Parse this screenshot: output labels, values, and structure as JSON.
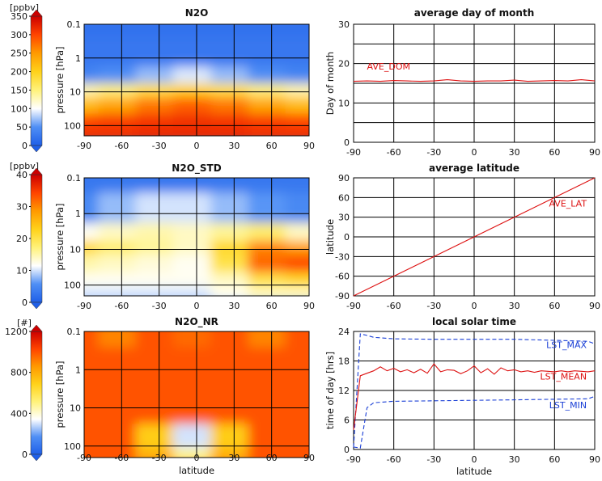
{
  "colors": {
    "red_line": "#dd1111",
    "blue_dash": "#1a3fd6",
    "grid": "#000000",
    "cmap": [
      "#1f5fe8",
      "#4f8ff5",
      "#ffffff",
      "#fff27a",
      "#ffd21a",
      "#ff9a00",
      "#ff4400",
      "#cc0000"
    ]
  },
  "heatmaps": [
    {
      "title": "N2O",
      "colorbar": {
        "unit": "[ppbv]",
        "ticks": [
          "0",
          "50",
          "100",
          "150",
          "200",
          "250",
          "300",
          "350"
        ],
        "max": 350
      },
      "ylabel": "pressure [hPa]",
      "yticks": [
        "0.1",
        "1",
        "10",
        "100"
      ],
      "xticks": [
        "-90",
        "-60",
        "-30",
        "0",
        "30",
        "60",
        "90"
      ],
      "xlabel": ""
    },
    {
      "title": "N2O_STD",
      "colorbar": {
        "unit": "[ppbv]",
        "ticks": [
          "0",
          "10",
          "20",
          "30",
          "40"
        ],
        "max": 40
      },
      "ylabel": "pressure [hPa]",
      "yticks": [
        "0.1",
        "1",
        "10",
        "100"
      ],
      "xticks": [
        "-90",
        "-60",
        "-30",
        "0",
        "30",
        "60",
        "90"
      ],
      "xlabel": ""
    },
    {
      "title": "N2O_NR",
      "colorbar": {
        "unit": "[#]",
        "ticks": [
          "0",
          "400",
          "800",
          "1200"
        ],
        "max": 1200
      },
      "ylabel": "pressure [hPa]",
      "yticks": [
        "0.1",
        "1",
        "10",
        "100"
      ],
      "xticks": [
        "-90",
        "-60",
        "-30",
        "0",
        "30",
        "60",
        "90"
      ],
      "xlabel": "latitude"
    }
  ],
  "chart_data": [
    {
      "type": "heatmap",
      "title": "N2O",
      "x": [
        -90,
        90
      ],
      "y_log_range_hPa": [
        0.1,
        200
      ],
      "rows": [
        {
          "pressure": 0.1,
          "values": [
            20,
            20,
            20,
            20,
            20,
            20,
            20
          ]
        },
        {
          "pressure": 1,
          "values": [
            25,
            25,
            25,
            25,
            25,
            25,
            25
          ]
        },
        {
          "pressure": 5,
          "values": [
            40,
            50,
            70,
            90,
            70,
            50,
            40
          ]
        },
        {
          "pressure": 10,
          "values": [
            130,
            150,
            180,
            200,
            180,
            150,
            130
          ]
        },
        {
          "pressure": 30,
          "values": [
            220,
            240,
            270,
            285,
            270,
            240,
            220
          ]
        },
        {
          "pressure": 100,
          "values": [
            300,
            305,
            310,
            315,
            310,
            305,
            300
          ]
        },
        {
          "pressure": 200,
          "values": [
            315,
            315,
            320,
            320,
            320,
            315,
            315
          ]
        }
      ]
    },
    {
      "type": "heatmap",
      "title": "N2O_STD",
      "x": [
        -90,
        90
      ],
      "y_log_range_hPa": [
        0.1,
        200
      ],
      "rows": [
        {
          "pressure": 0.1,
          "values": [
            3,
            3,
            3,
            3,
            3,
            3,
            3
          ]
        },
        {
          "pressure": 1,
          "values": [
            5,
            8,
            10,
            10,
            8,
            6,
            5
          ]
        },
        {
          "pressure": 5,
          "values": [
            12,
            14,
            15,
            14,
            16,
            18,
            14
          ]
        },
        {
          "pressure": 10,
          "values": [
            22,
            18,
            16,
            14,
            22,
            30,
            28
          ]
        },
        {
          "pressure": 30,
          "values": [
            15,
            14,
            13,
            12,
            20,
            32,
            34
          ]
        },
        {
          "pressure": 100,
          "values": [
            12,
            12,
            12,
            12,
            14,
            20,
            22
          ]
        },
        {
          "pressure": 200,
          "values": [
            10,
            10,
            10,
            10,
            12,
            14,
            14
          ]
        }
      ]
    },
    {
      "type": "heatmap",
      "title": "N2O_NR",
      "x": [
        -90,
        90
      ],
      "y_log_range_hPa": [
        0.1,
        200
      ],
      "rows": [
        {
          "pressure": 0.1,
          "values": [
            1000,
            900,
            1000,
            950,
            1000,
            900,
            1000
          ]
        },
        {
          "pressure": 1,
          "values": [
            1000,
            1000,
            1000,
            1000,
            1000,
            1000,
            1000
          ]
        },
        {
          "pressure": 10,
          "values": [
            1000,
            1000,
            1000,
            1000,
            1000,
            1000,
            1000
          ]
        },
        {
          "pressure": 100,
          "values": [
            1000,
            1000,
            700,
            300,
            700,
            1000,
            1000
          ]
        },
        {
          "pressure": 200,
          "values": [
            1000,
            1000,
            800,
            500,
            800,
            1000,
            1000
          ]
        }
      ]
    },
    {
      "type": "line",
      "title": "average day of month",
      "xlabel": "",
      "ylabel": "Day of month",
      "xlim": [
        -90,
        90
      ],
      "ylim": [
        0,
        30
      ],
      "xticks": [
        "-90",
        "-60",
        "-30",
        "0",
        "30",
        "60",
        "90"
      ],
      "yticks": [
        "0",
        "10",
        "20",
        "30"
      ],
      "series": [
        {
          "name": "AVE_DOM",
          "x": [
            -90,
            -80,
            -70,
            -60,
            -50,
            -40,
            -30,
            -20,
            -10,
            0,
            10,
            20,
            30,
            40,
            50,
            60,
            70,
            80,
            90
          ],
          "y": [
            15.5,
            15.6,
            15.5,
            15.7,
            15.6,
            15.5,
            15.6,
            15.9,
            15.6,
            15.5,
            15.6,
            15.6,
            15.8,
            15.5,
            15.6,
            15.7,
            15.6,
            15.9,
            15.6
          ]
        }
      ]
    },
    {
      "type": "line",
      "title": "average latitude",
      "xlabel": "",
      "ylabel": "latitude",
      "xlim": [
        -90,
        90
      ],
      "ylim": [
        -90,
        90
      ],
      "xticks": [
        "-90",
        "-60",
        "-30",
        "0",
        "30",
        "60",
        "90"
      ],
      "yticks": [
        "-90",
        "-60",
        "-30",
        "0",
        "30",
        "60",
        "90"
      ],
      "series": [
        {
          "name": "AVE_LAT",
          "x": [
            -90,
            90
          ],
          "y": [
            -90,
            90
          ]
        }
      ]
    },
    {
      "type": "line",
      "title": "local solar time",
      "xlabel": "latitude",
      "ylabel": "time of day [hrs]",
      "xlim": [
        -90,
        90
      ],
      "ylim": [
        0,
        24
      ],
      "xticks": [
        "-90",
        "-60",
        "-30",
        "0",
        "30",
        "60",
        "90"
      ],
      "yticks": [
        "0",
        "6",
        "12",
        "18",
        "24"
      ],
      "series": [
        {
          "name": "LST_MAX",
          "x": [
            -90,
            -85,
            -80,
            -75,
            -60,
            -30,
            0,
            30,
            60,
            85,
            90
          ],
          "y": [
            0.5,
            23.5,
            23.2,
            22.8,
            22.5,
            22.4,
            22.4,
            22.4,
            22.2,
            22.0,
            21.5
          ]
        },
        {
          "name": "LST_MEAN",
          "x": [
            -90,
            -85,
            -80,
            -75,
            -70,
            -65,
            -60,
            -55,
            -50,
            -45,
            -40,
            -35,
            -30,
            -25,
            -20,
            -15,
            -10,
            -5,
            0,
            5,
            10,
            15,
            20,
            25,
            30,
            35,
            40,
            45,
            50,
            55,
            60,
            65,
            70,
            75,
            80,
            85,
            90
          ],
          "y": [
            4,
            15,
            15.5,
            16,
            16.8,
            16,
            16.5,
            15.8,
            16.2,
            15.6,
            16.3,
            15.5,
            17.4,
            15.8,
            16.2,
            16.1,
            15.4,
            16.0,
            17.0,
            15.6,
            16.4,
            15.3,
            16.6,
            16.0,
            16.2,
            15.8,
            16.0,
            15.7,
            16.0,
            15.9,
            15.8,
            16.0,
            15.8,
            16.0,
            15.9,
            15.8,
            16.0
          ]
        },
        {
          "name": "LST_MIN",
          "x": [
            -90,
            -85,
            -80,
            -75,
            -60,
            -30,
            0,
            30,
            60,
            85,
            90
          ],
          "y": [
            0.5,
            0.3,
            8.5,
            9.5,
            9.8,
            9.9,
            10.0,
            10.1,
            10.2,
            10.3,
            10.8
          ]
        }
      ]
    }
  ]
}
